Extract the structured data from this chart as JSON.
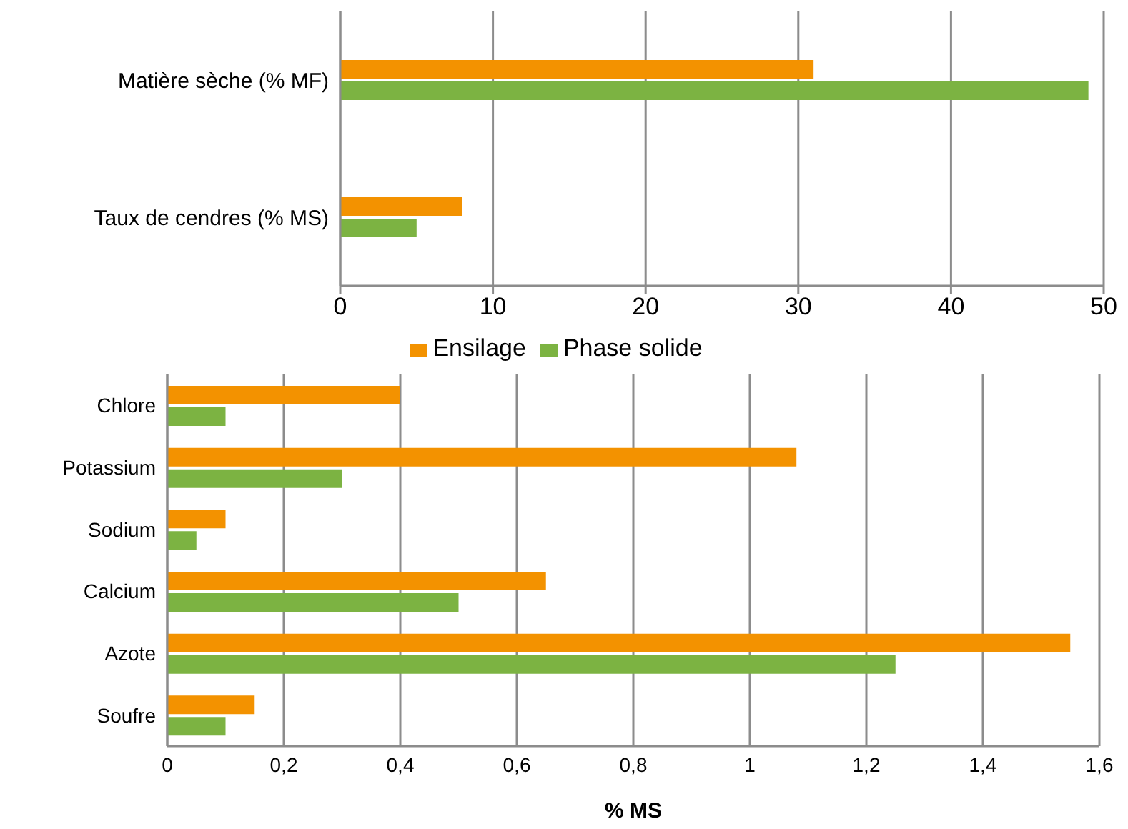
{
  "chart_data": [
    {
      "type": "bar",
      "orientation": "horizontal",
      "categories": [
        "Matière sèche (% MF)",
        "Taux de cendres (% MS)"
      ],
      "series": [
        {
          "name": "Ensilage",
          "color": "#f39200",
          "values": [
            31,
            8
          ]
        },
        {
          "name": "Phase solide",
          "color": "#7cb342",
          "values": [
            49,
            5
          ]
        }
      ],
      "xlim": [
        0,
        50
      ],
      "xticks": [
        0,
        10,
        20,
        30,
        40,
        50
      ],
      "grid": "x",
      "legend": "bottom"
    },
    {
      "type": "bar",
      "orientation": "horizontal",
      "xlabel": "% MS",
      "categories": [
        "Chlore",
        "Potassium",
        "Sodium",
        "Calcium",
        "Azote",
        "Soufre"
      ],
      "series": [
        {
          "color": "#f39200",
          "values": [
            0.4,
            1.08,
            0.1,
            0.65,
            1.55,
            0.15
          ]
        },
        {
          "color": "#7cb342",
          "values": [
            0.1,
            0.3,
            0.05,
            0.5,
            1.25,
            0.1
          ]
        }
      ],
      "xlim": [
        0,
        1.6
      ],
      "xticks": [
        {
          "value": 0,
          "label": "0"
        },
        {
          "value": 0.2,
          "label": "0,2"
        },
        {
          "value": 0.4,
          "label": "0,4"
        },
        {
          "value": 0.6,
          "label": "0,6"
        },
        {
          "value": 0.8,
          "label": "0,8"
        },
        {
          "value": 1,
          "label": "1"
        },
        {
          "value": 1.2,
          "label": "1,2"
        },
        {
          "value": 1.4,
          "label": "1,4"
        },
        {
          "value": 1.6,
          "label": "1,6"
        }
      ],
      "grid": "x"
    }
  ]
}
